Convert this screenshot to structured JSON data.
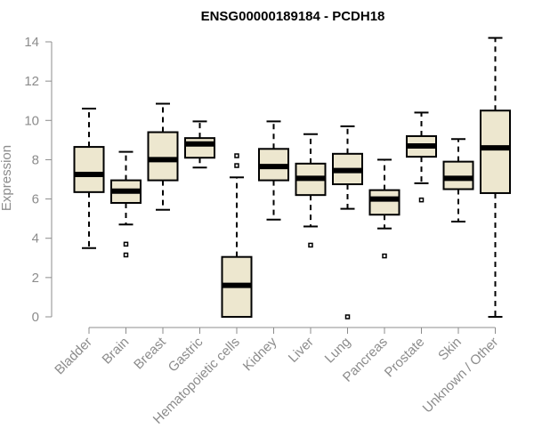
{
  "chart_data": {
    "type": "boxplot",
    "title": "ENSG00000189184 - PCDH18",
    "ylabel": "Expression",
    "xlabel": "",
    "ylim": [
      0,
      14.6
    ],
    "yticks": [
      0,
      2,
      4,
      6,
      8,
      10,
      12,
      14
    ],
    "box_fill": "#ede7cf",
    "categories": [
      "Bladder",
      "Brain",
      "Breast",
      "Gastric",
      "Hematopoietic cells",
      "Kidney",
      "Liver",
      "Lung",
      "Pancreas",
      "Prostate",
      "Skin",
      "Unknown / Other"
    ],
    "boxes": [
      {
        "whisker_low": 3.5,
        "q1": 6.35,
        "median": 7.25,
        "q3": 8.65,
        "whisker_high": 10.6,
        "outliers": []
      },
      {
        "whisker_low": 4.7,
        "q1": 5.8,
        "median": 6.4,
        "q3": 6.95,
        "whisker_high": 8.4,
        "outliers": [
          3.7,
          3.15
        ]
      },
      {
        "whisker_low": 5.45,
        "q1": 6.95,
        "median": 8.0,
        "q3": 9.4,
        "whisker_high": 10.85,
        "outliers": []
      },
      {
        "whisker_low": 7.6,
        "q1": 8.1,
        "median": 8.8,
        "q3": 9.1,
        "whisker_high": 9.95,
        "outliers": []
      },
      {
        "whisker_low": 0.0,
        "q1": 0.0,
        "median": 1.6,
        "q3": 3.05,
        "whisker_high": 7.1,
        "outliers": [
          8.2,
          7.7
        ]
      },
      {
        "whisker_low": 4.95,
        "q1": 6.95,
        "median": 7.65,
        "q3": 8.55,
        "whisker_high": 9.95,
        "outliers": []
      },
      {
        "whisker_low": 4.6,
        "q1": 6.2,
        "median": 7.05,
        "q3": 7.8,
        "whisker_high": 9.3,
        "outliers": [
          3.65
        ]
      },
      {
        "whisker_low": 5.5,
        "q1": 6.75,
        "median": 7.45,
        "q3": 8.3,
        "whisker_high": 9.7,
        "outliers": [
          0.0
        ]
      },
      {
        "whisker_low": 4.5,
        "q1": 5.2,
        "median": 6.0,
        "q3": 6.45,
        "whisker_high": 8.0,
        "outliers": [
          3.1
        ]
      },
      {
        "whisker_low": 6.8,
        "q1": 8.15,
        "median": 8.7,
        "q3": 9.2,
        "whisker_high": 10.4,
        "outliers": [
          5.95
        ]
      },
      {
        "whisker_low": 4.85,
        "q1": 6.5,
        "median": 7.05,
        "q3": 7.9,
        "whisker_high": 9.05,
        "outliers": []
      },
      {
        "whisker_low": 0.0,
        "q1": 6.3,
        "median": 8.6,
        "q3": 10.5,
        "whisker_high": 14.2,
        "outliers": []
      }
    ]
  }
}
